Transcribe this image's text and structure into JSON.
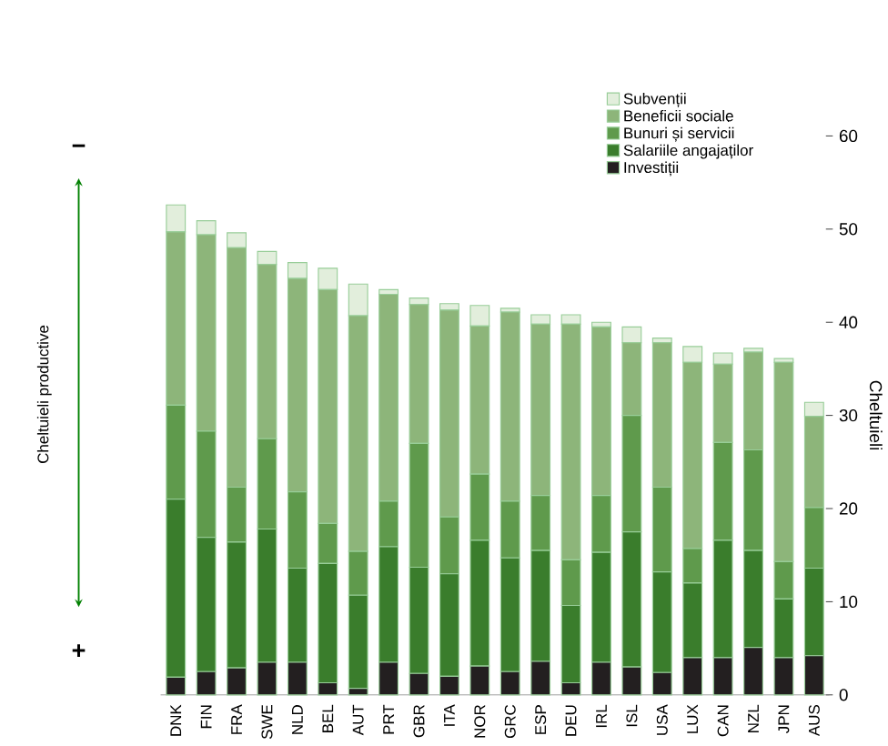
{
  "chart_data": {
    "type": "bar",
    "stacked": true,
    "ylabel": "Cheltuieli",
    "categories": [
      "DNK",
      "FIN",
      "FRA",
      "SWE",
      "NLD",
      "BEL",
      "AUT",
      "PRT",
      "GBR",
      "ITA",
      "NOR",
      "GRC",
      "ESP",
      "DEU",
      "IRL",
      "ISL",
      "USA",
      "LUX",
      "CAN",
      "NZL",
      "JPN",
      "AUS"
    ],
    "series": [
      {
        "name": "Investiții",
        "color": "#231f20",
        "values": [
          1.9,
          2.5,
          2.9,
          3.5,
          3.5,
          1.3,
          0.7,
          3.5,
          2.3,
          2.0,
          3.1,
          2.5,
          3.6,
          1.3,
          3.5,
          3.0,
          2.4,
          4.0,
          4.0,
          5.1,
          4.0,
          4.2
        ]
      },
      {
        "name": "Salariile angajaților",
        "color": "#3a7d2c",
        "values": [
          19.1,
          14.4,
          13.5,
          14.3,
          10.1,
          12.8,
          10.0,
          12.4,
          11.4,
          11.0,
          13.5,
          12.2,
          11.9,
          8.3,
          11.8,
          14.5,
          10.8,
          8.0,
          12.6,
          10.4,
          6.3,
          9.4
        ]
      },
      {
        "name": "Bunuri și servicii",
        "color": "#5f9a4c",
        "values": [
          10.1,
          11.4,
          5.9,
          9.7,
          8.2,
          4.3,
          4.7,
          4.9,
          13.3,
          6.1,
          7.1,
          6.1,
          5.9,
          4.9,
          6.1,
          12.5,
          9.1,
          3.7,
          10.5,
          10.8,
          4.0,
          6.5
        ]
      },
      {
        "name": "Beneficii sociale",
        "color": "#8db57a",
        "values": [
          18.6,
          21.1,
          25.7,
          18.7,
          22.9,
          25.1,
          25.3,
          22.2,
          14.9,
          22.2,
          15.9,
          20.3,
          18.4,
          25.3,
          18.1,
          7.8,
          15.5,
          20.0,
          8.4,
          10.5,
          21.4,
          9.8
        ]
      },
      {
        "name": "Subvenții",
        "color": "#e2eedc",
        "values": [
          2.9,
          1.5,
          1.6,
          1.4,
          1.7,
          2.3,
          3.4,
          0.5,
          0.7,
          0.7,
          2.2,
          0.4,
          1.0,
          1.0,
          0.5,
          1.7,
          0.5,
          1.7,
          1.2,
          0.4,
          0.4,
          1.5
        ]
      }
    ],
    "ylim": [
      0,
      60
    ],
    "yticks": [
      0,
      10,
      20,
      30,
      40,
      50,
      60
    ],
    "legend": "top right",
    "annotations": [
      "−",
      "Cheltuieli productive",
      "+"
    ]
  }
}
